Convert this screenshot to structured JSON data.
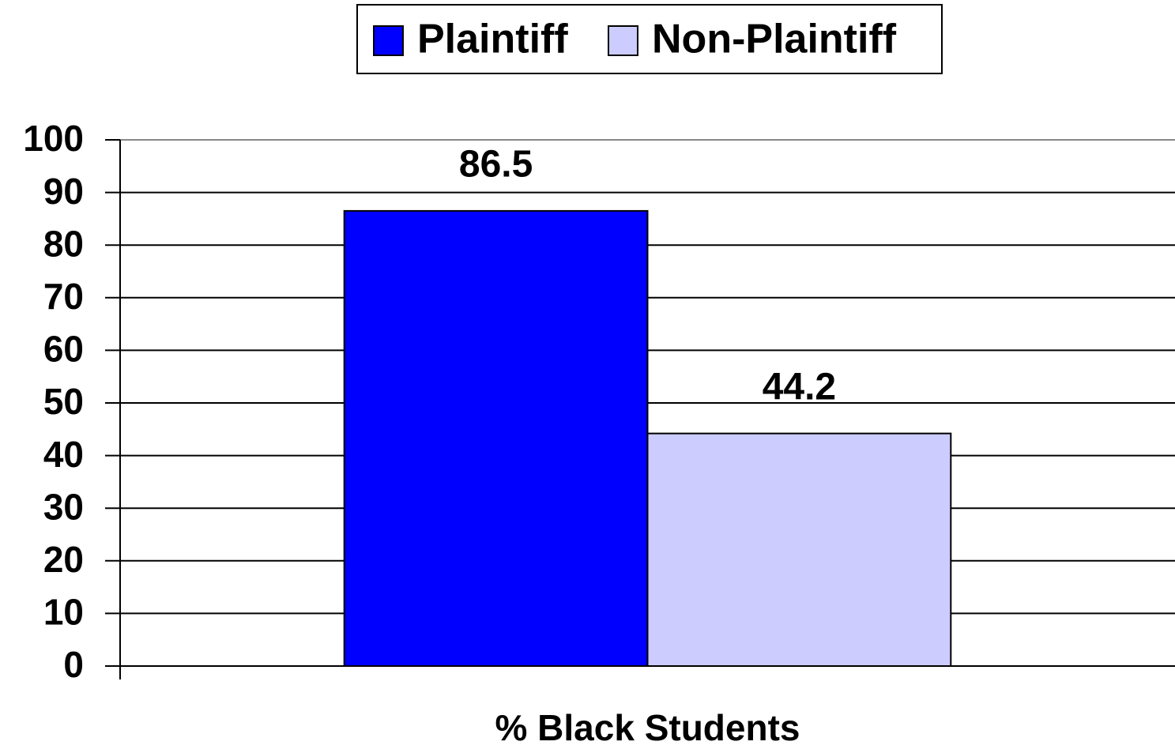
{
  "chart_data": {
    "type": "bar",
    "categories": [
      "% Black Students"
    ],
    "series": [
      {
        "name": "Plaintiff",
        "color": "#0000ff",
        "values": [
          86.5
        ]
      },
      {
        "name": "Non-Plaintiff",
        "color": "#ccccff",
        "values": [
          44.2
        ]
      }
    ],
    "ylim": [
      0,
      100
    ],
    "yticks": [
      0,
      10,
      20,
      30,
      40,
      50,
      60,
      70,
      80,
      90,
      100
    ],
    "grid": true,
    "legend": "top"
  }
}
